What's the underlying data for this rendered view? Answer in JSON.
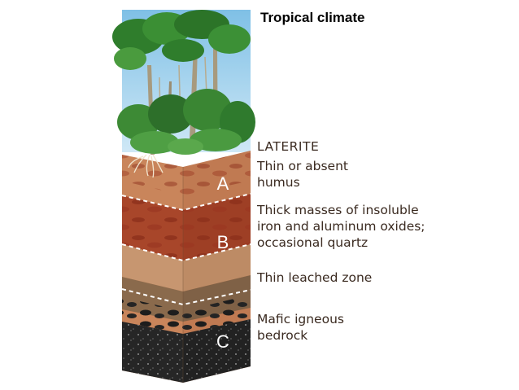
{
  "title": "Tropical climate",
  "soil_type": "LATERITE",
  "horizons": [
    {
      "letter": "A",
      "description": "Thin or absent\nhumus"
    },
    {
      "letter": "B",
      "description": "Thick masses of insoluble\niron and aluminum oxides;\noccasional quartz"
    },
    {
      "letter": "",
      "description": "Thin leached zone"
    },
    {
      "letter": "C",
      "description": "Mafic igneous\nbedrock"
    }
  ],
  "colors": {
    "sky": "#a9d6ef",
    "horizon_a": "#c9855b",
    "horizon_b": "#a8462a",
    "leached_zone": "#c79670",
    "transition": "#8a6a4c",
    "bedrock": "#262626"
  }
}
